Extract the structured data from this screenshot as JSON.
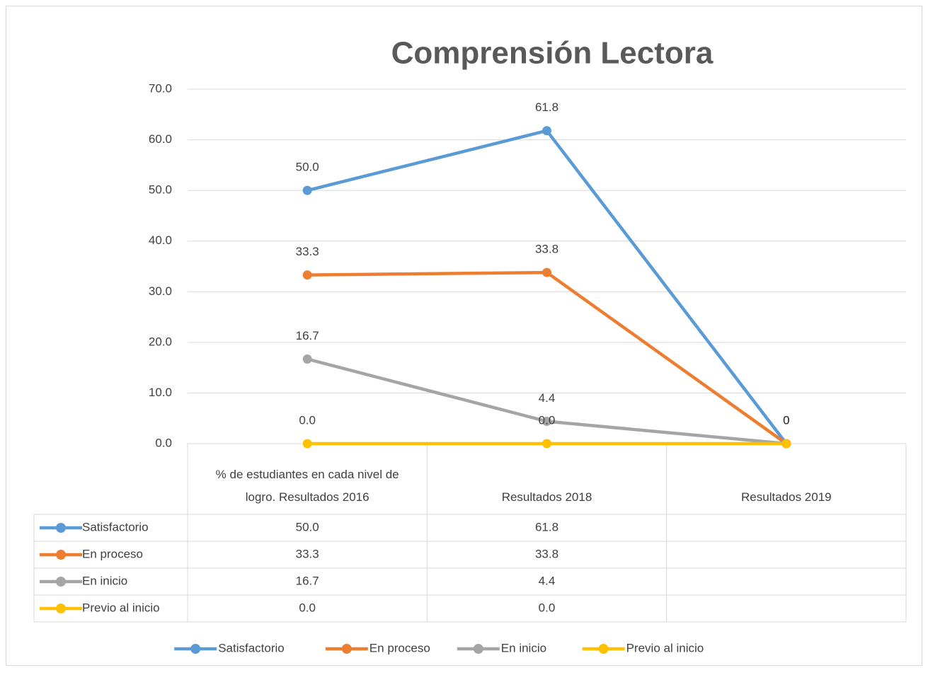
{
  "chart_data": {
    "type": "line",
    "title": "Comprensión Lectora",
    "categories": [
      "% de estudiantes en cada nivel de logro. Resultados 2016",
      "Resultados 2018",
      "Resultados 2019"
    ],
    "series": [
      {
        "name": "Satisfactorio",
        "color": "#5b9bd5",
        "values": [
          50.0,
          61.8,
          0
        ],
        "value_labels": [
          "50.0",
          "61.8",
          "0"
        ],
        "table_labels": [
          "50.0",
          "61.8",
          null
        ]
      },
      {
        "name": "En proceso",
        "color": "#ed7d31",
        "values": [
          33.3,
          33.8,
          0
        ],
        "value_labels": [
          "33.3",
          "33.8",
          "0"
        ],
        "table_labels": [
          "33.3",
          "33.8",
          null
        ]
      },
      {
        "name": "En inicio",
        "color": "#a5a5a5",
        "values": [
          16.7,
          4.4,
          0
        ],
        "value_labels": [
          "16.7",
          "4.4",
          "0"
        ],
        "table_labels": [
          "16.7",
          "4.4",
          null
        ]
      },
      {
        "name": "Previo al inicio",
        "color": "#ffc000",
        "values": [
          0.0,
          0.0,
          0
        ],
        "value_labels": [
          "0.0",
          "0.0",
          "0"
        ],
        "table_labels": [
          "0.0",
          "0.0",
          null
        ]
      }
    ],
    "ylim": [
      0,
      70
    ],
    "yticks": [
      {
        "value": 0,
        "label": "0.0"
      },
      {
        "value": 10,
        "label": "10.0"
      },
      {
        "value": 20,
        "label": "20.0"
      },
      {
        "value": 30,
        "label": "30.0"
      },
      {
        "value": 40,
        "label": "40.0"
      },
      {
        "value": 50,
        "label": "50.0"
      },
      {
        "value": 60,
        "label": "60.0"
      },
      {
        "value": 70,
        "label": "70.0"
      }
    ],
    "grid": true,
    "legend": "bottom"
  }
}
